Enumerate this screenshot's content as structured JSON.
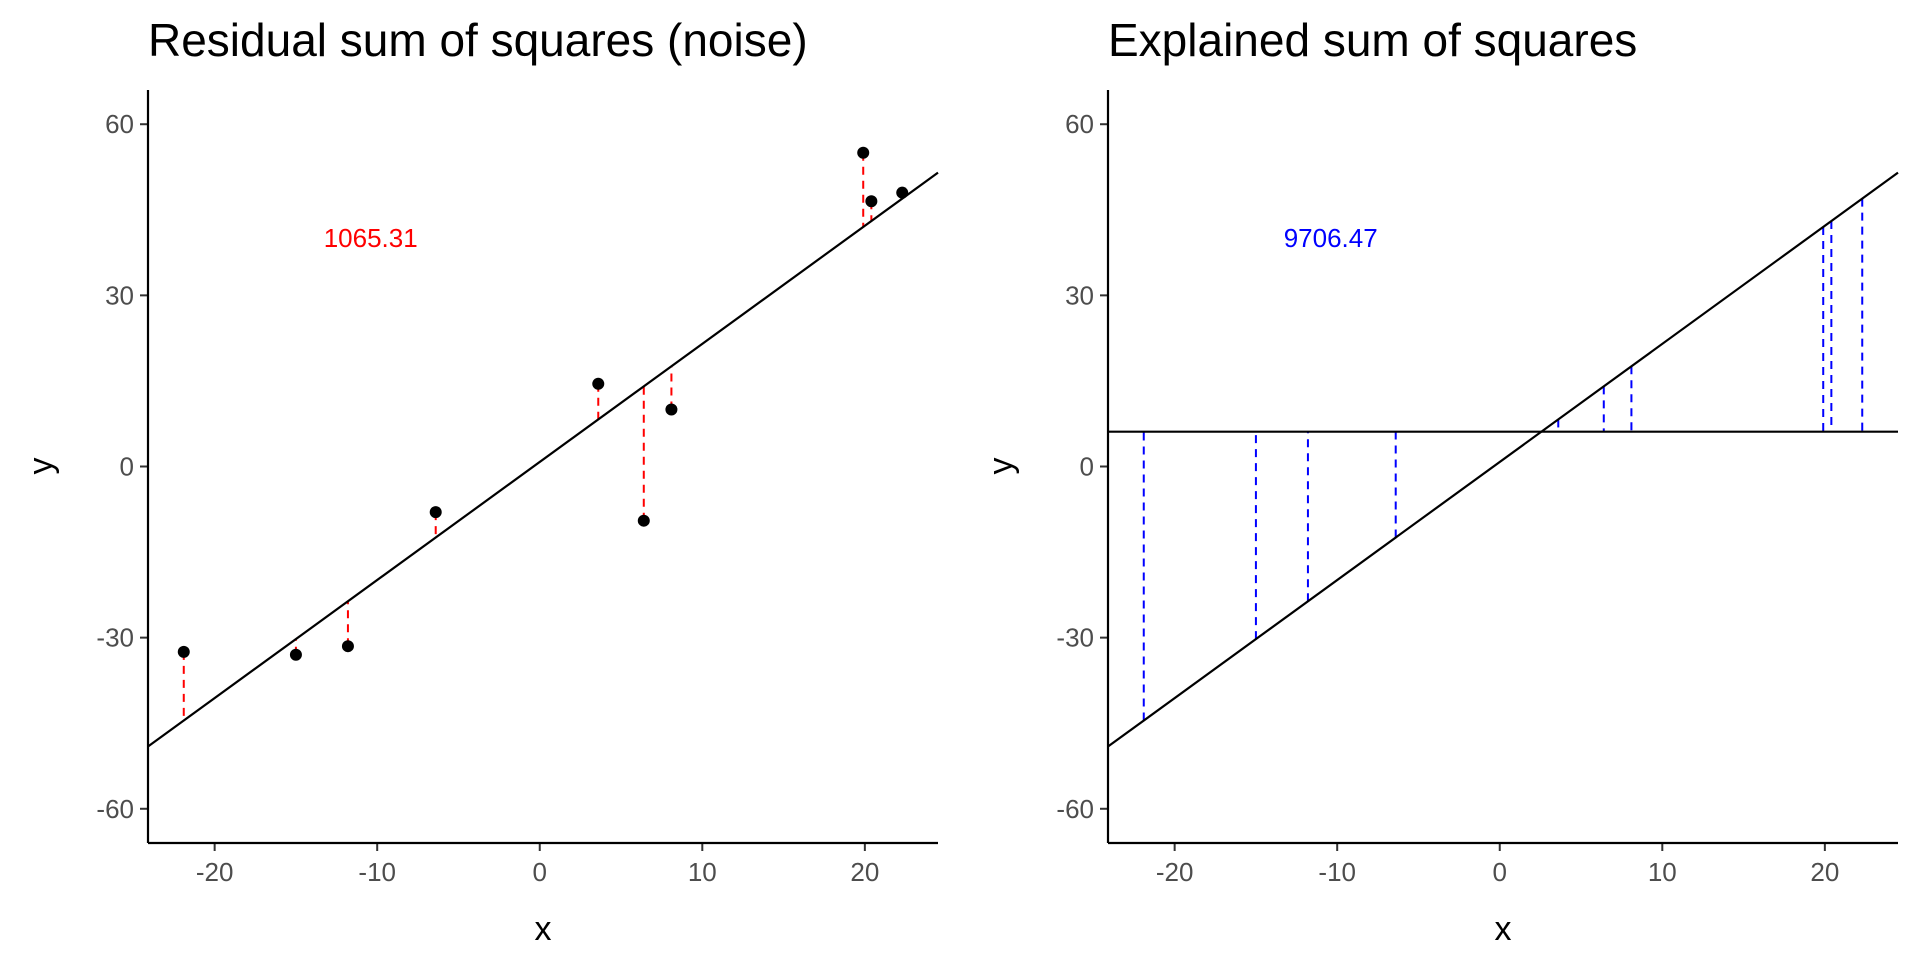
{
  "chart_data": [
    {
      "type": "scatter",
      "title": "Residual sum of squares (noise)",
      "xlabel": "x",
      "ylabel": "y",
      "xlim": [
        -24.1,
        24.5
      ],
      "ylim": [
        -66,
        66
      ],
      "x_ticks": [
        -20,
        -10,
        0,
        10,
        20
      ],
      "y_ticks": [
        -60,
        -30,
        0,
        30,
        60
      ],
      "x_tick_labels": [
        "-20",
        "-10",
        "0",
        "10",
        "20"
      ],
      "y_tick_labels": [
        "-60",
        "-30",
        "0",
        "30",
        "60"
      ],
      "grid": false,
      "annotation": {
        "text": "1065.31",
        "x": -10.4,
        "y": 38.5,
        "color": "#ff0000"
      },
      "points": [
        {
          "x": -21.9,
          "y": -32.5
        },
        {
          "x": -15.0,
          "y": -33.0
        },
        {
          "x": -11.8,
          "y": -31.5
        },
        {
          "x": -6.4,
          "y": -8.0
        },
        {
          "x": 3.6,
          "y": 14.5
        },
        {
          "x": 6.4,
          "y": -9.5
        },
        {
          "x": 8.1,
          "y": 10.0
        },
        {
          "x": 19.9,
          "y": 55.0
        },
        {
          "x": 20.4,
          "y": 46.5
        },
        {
          "x": 22.3,
          "y": 48.0
        }
      ],
      "fit_line": {
        "slope": 2.07,
        "intercept": 0.8
      },
      "residual_segments": "from each point to fit line",
      "segment_color": "#ff0000",
      "line_color": "#000000",
      "point_color": "#000000"
    },
    {
      "type": "line",
      "title": "Explained sum of squares",
      "xlabel": "x",
      "ylabel": "y",
      "xlim": [
        -24.1,
        24.5
      ],
      "ylim": [
        -66,
        66
      ],
      "x_ticks": [
        -20,
        -10,
        0,
        10,
        20
      ],
      "y_ticks": [
        -60,
        -30,
        0,
        30,
        60
      ],
      "x_tick_labels": [
        "-20",
        "-10",
        "0",
        "10",
        "20"
      ],
      "y_tick_labels": [
        "-60",
        "-30",
        "0",
        "30",
        "60"
      ],
      "grid": false,
      "annotation": {
        "text": "9706.47",
        "x": -10.4,
        "y": 38.5,
        "color": "#0000ff"
      },
      "x_positions": [
        -21.9,
        -15.0,
        -11.8,
        -6.4,
        3.6,
        6.4,
        8.1,
        19.9,
        20.4,
        22.3
      ],
      "fit_line": {
        "slope": 2.07,
        "intercept": 0.8
      },
      "mean_line": {
        "y": 6.1
      },
      "explained_segments": "from fit line to mean line at each x",
      "segment_color": "#0000ff",
      "line_color": "#000000"
    }
  ]
}
